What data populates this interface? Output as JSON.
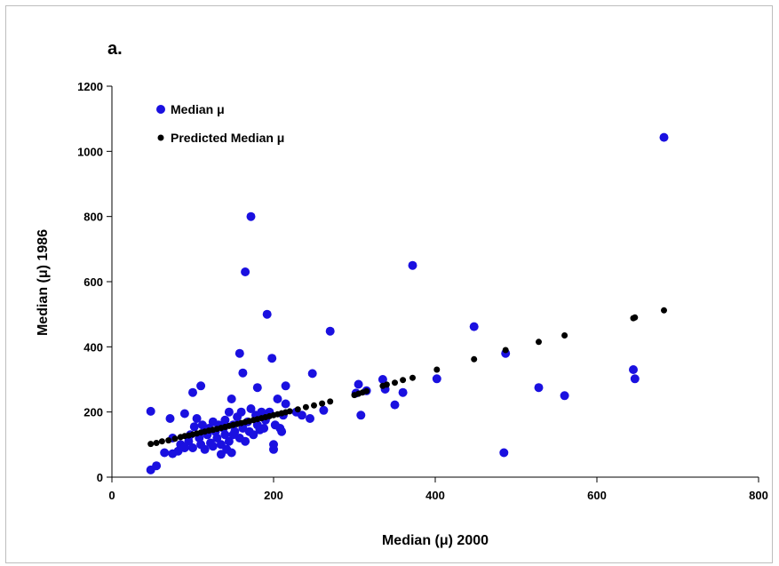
{
  "chart_data": {
    "type": "scatter",
    "panel_label": "a.",
    "xlabel": "Median (μ) 2000",
    "ylabel": "Median (μ) 1986",
    "xlim": [
      0,
      800
    ],
    "ylim": [
      0,
      1200
    ],
    "x_ticks": [
      0,
      200,
      400,
      600,
      800
    ],
    "y_ticks": [
      0,
      200,
      400,
      600,
      800,
      1000,
      1200
    ],
    "grid": false,
    "legend_position": "top-left",
    "series": [
      {
        "name": "Median μ",
        "color": "#1a10e0",
        "marker": "large-circle",
        "points": [
          [
            48,
            202
          ],
          [
            48,
            22
          ],
          [
            55,
            35
          ],
          [
            65,
            75
          ],
          [
            72,
            180
          ],
          [
            75,
            120
          ],
          [
            75,
            72
          ],
          [
            82,
            80
          ],
          [
            85,
            100
          ],
          [
            90,
            195
          ],
          [
            90,
            90
          ],
          [
            95,
            110
          ],
          [
            97,
            130
          ],
          [
            100,
            260
          ],
          [
            100,
            90
          ],
          [
            102,
            155
          ],
          [
            105,
            180
          ],
          [
            108,
            120
          ],
          [
            110,
            280
          ],
          [
            110,
            100
          ],
          [
            112,
            160
          ],
          [
            115,
            140
          ],
          [
            115,
            85
          ],
          [
            118,
            130
          ],
          [
            120,
            150
          ],
          [
            122,
            105
          ],
          [
            125,
            170
          ],
          [
            125,
            95
          ],
          [
            128,
            140
          ],
          [
            130,
            120
          ],
          [
            132,
            160
          ],
          [
            135,
            70
          ],
          [
            135,
            100
          ],
          [
            138,
            150
          ],
          [
            140,
            130
          ],
          [
            140,
            175
          ],
          [
            142,
            85
          ],
          [
            145,
            110
          ],
          [
            145,
            200
          ],
          [
            148,
            240
          ],
          [
            148,
            75
          ],
          [
            150,
            160
          ],
          [
            150,
            130
          ],
          [
            152,
            140
          ],
          [
            155,
            185
          ],
          [
            158,
            380
          ],
          [
            158,
            120
          ],
          [
            160,
            200
          ],
          [
            162,
            320
          ],
          [
            162,
            150
          ],
          [
            165,
            630
          ],
          [
            165,
            110
          ],
          [
            168,
            170
          ],
          [
            170,
            140
          ],
          [
            172,
            210
          ],
          [
            172,
            800
          ],
          [
            175,
            130
          ],
          [
            178,
            190
          ],
          [
            180,
            275
          ],
          [
            180,
            160
          ],
          [
            183,
            145
          ],
          [
            185,
            200
          ],
          [
            188,
            150
          ],
          [
            190,
            175
          ],
          [
            192,
            500
          ],
          [
            195,
            200
          ],
          [
            198,
            365
          ],
          [
            200,
            85
          ],
          [
            200,
            100
          ],
          [
            202,
            160
          ],
          [
            205,
            240
          ],
          [
            208,
            150
          ],
          [
            210,
            140
          ],
          [
            212,
            190
          ],
          [
            215,
            280
          ],
          [
            215,
            225
          ],
          [
            228,
            200
          ],
          [
            235,
            190
          ],
          [
            245,
            180
          ],
          [
            248,
            318
          ],
          [
            262,
            205
          ],
          [
            270,
            448
          ],
          [
            302,
            258
          ],
          [
            305,
            285
          ],
          [
            308,
            190
          ],
          [
            315,
            265
          ],
          [
            335,
            300
          ],
          [
            338,
            270
          ],
          [
            350,
            222
          ],
          [
            360,
            260
          ],
          [
            372,
            650
          ],
          [
            402,
            302
          ],
          [
            448,
            462
          ],
          [
            485,
            75
          ],
          [
            487,
            380
          ],
          [
            528,
            275
          ],
          [
            560,
            250
          ],
          [
            645,
            330
          ],
          [
            647,
            302
          ],
          [
            683,
            1043
          ]
        ]
      },
      {
        "name": "Predicted Median μ",
        "color": "#000000",
        "marker": "small-circle",
        "points": [
          [
            48,
            102
          ],
          [
            55,
            105
          ],
          [
            62,
            110
          ],
          [
            70,
            113
          ],
          [
            78,
            118
          ],
          [
            85,
            123
          ],
          [
            90,
            126
          ],
          [
            95,
            128
          ],
          [
            100,
            131
          ],
          [
            105,
            134
          ],
          [
            110,
            137
          ],
          [
            115,
            140
          ],
          [
            120,
            143
          ],
          [
            125,
            145
          ],
          [
            130,
            148
          ],
          [
            135,
            151
          ],
          [
            140,
            154
          ],
          [
            145,
            157
          ],
          [
            150,
            160
          ],
          [
            155,
            163
          ],
          [
            160,
            166
          ],
          [
            165,
            169
          ],
          [
            170,
            172
          ],
          [
            175,
            175
          ],
          [
            180,
            178
          ],
          [
            185,
            181
          ],
          [
            190,
            184
          ],
          [
            195,
            187
          ],
          [
            200,
            190
          ],
          [
            205,
            193
          ],
          [
            210,
            196
          ],
          [
            215,
            199
          ],
          [
            220,
            202
          ],
          [
            230,
            208
          ],
          [
            240,
            215
          ],
          [
            250,
            220
          ],
          [
            260,
            226
          ],
          [
            270,
            232
          ],
          [
            300,
            252
          ],
          [
            305,
            256
          ],
          [
            310,
            260
          ],
          [
            315,
            264
          ],
          [
            335,
            280
          ],
          [
            340,
            284
          ],
          [
            350,
            290
          ],
          [
            360,
            298
          ],
          [
            372,
            305
          ],
          [
            402,
            330
          ],
          [
            448,
            362
          ],
          [
            487,
            390
          ],
          [
            528,
            415
          ],
          [
            560,
            435
          ],
          [
            645,
            488
          ],
          [
            647,
            490
          ],
          [
            683,
            512
          ]
        ]
      }
    ]
  }
}
